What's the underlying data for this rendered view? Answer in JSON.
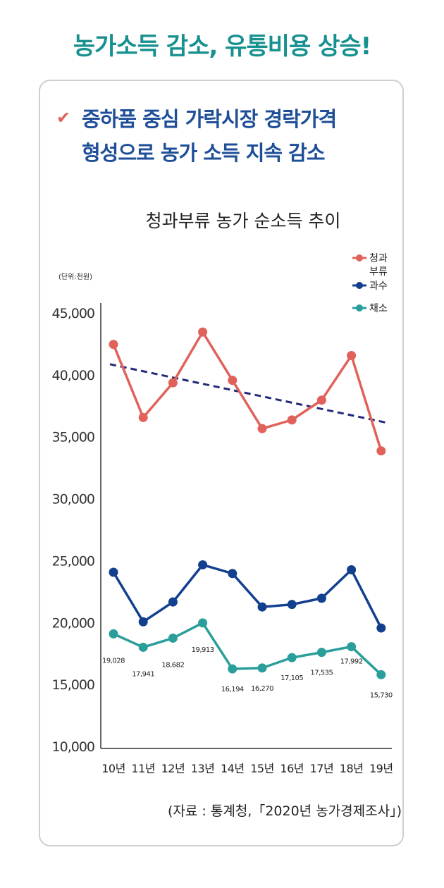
{
  "headline": "농가소득 감소, 유통비용 상승!",
  "subtitle": {
    "line1": "중하품 중심 가락시장 경락가격",
    "line2": "형성으로 농가 소득 지속 감소"
  },
  "check_icon": "check-icon",
  "source": "(자료 : 통계청,「2020년 농가경제조사」)",
  "colors": {
    "headline": "#17918f",
    "subtitle": "#1e4e98",
    "s1": "#e0625a",
    "s2": "#123f8e",
    "s3": "#2a9e9a",
    "trend": "#232a7a"
  },
  "chart_data": {
    "type": "line",
    "title": "청과부류 농가 순소득 추이",
    "unit": "(단위:천원)",
    "categories": [
      "10년",
      "11년",
      "12년",
      "13년",
      "14년",
      "15년",
      "16년",
      "17년",
      "18년",
      "19년"
    ],
    "ylim": [
      10000,
      45000
    ],
    "yticks": [
      "10,000",
      "15,000",
      "20,000",
      "25,000",
      "30,000",
      "35,000",
      "40,000",
      "45,000"
    ],
    "series": [
      {
        "name": "청과부류",
        "values": [
          42400,
          36500,
          39300,
          43400,
          39500,
          35600,
          36300,
          37900,
          41500,
          33800
        ]
      },
      {
        "name": "과수",
        "values": [
          24000,
          20000,
          21600,
          24600,
          23900,
          21200,
          21400,
          21900,
          24200,
          19500
        ]
      },
      {
        "name": "채소",
        "values": [
          19028,
          17941,
          18682,
          19913,
          16194,
          16270,
          17105,
          17535,
          17992,
          15730
        ],
        "labels": [
          "19,028",
          "17,941",
          "18,682",
          "19,913",
          "16,194",
          "16,270",
          "17,105",
          "17,535",
          "17,992",
          "15,730"
        ]
      }
    ],
    "trendline": {
      "from": 40800,
      "to": 36100
    },
    "legend": [
      "청과\n부류",
      "과수",
      "채소"
    ],
    "legend_position": "top-right"
  }
}
